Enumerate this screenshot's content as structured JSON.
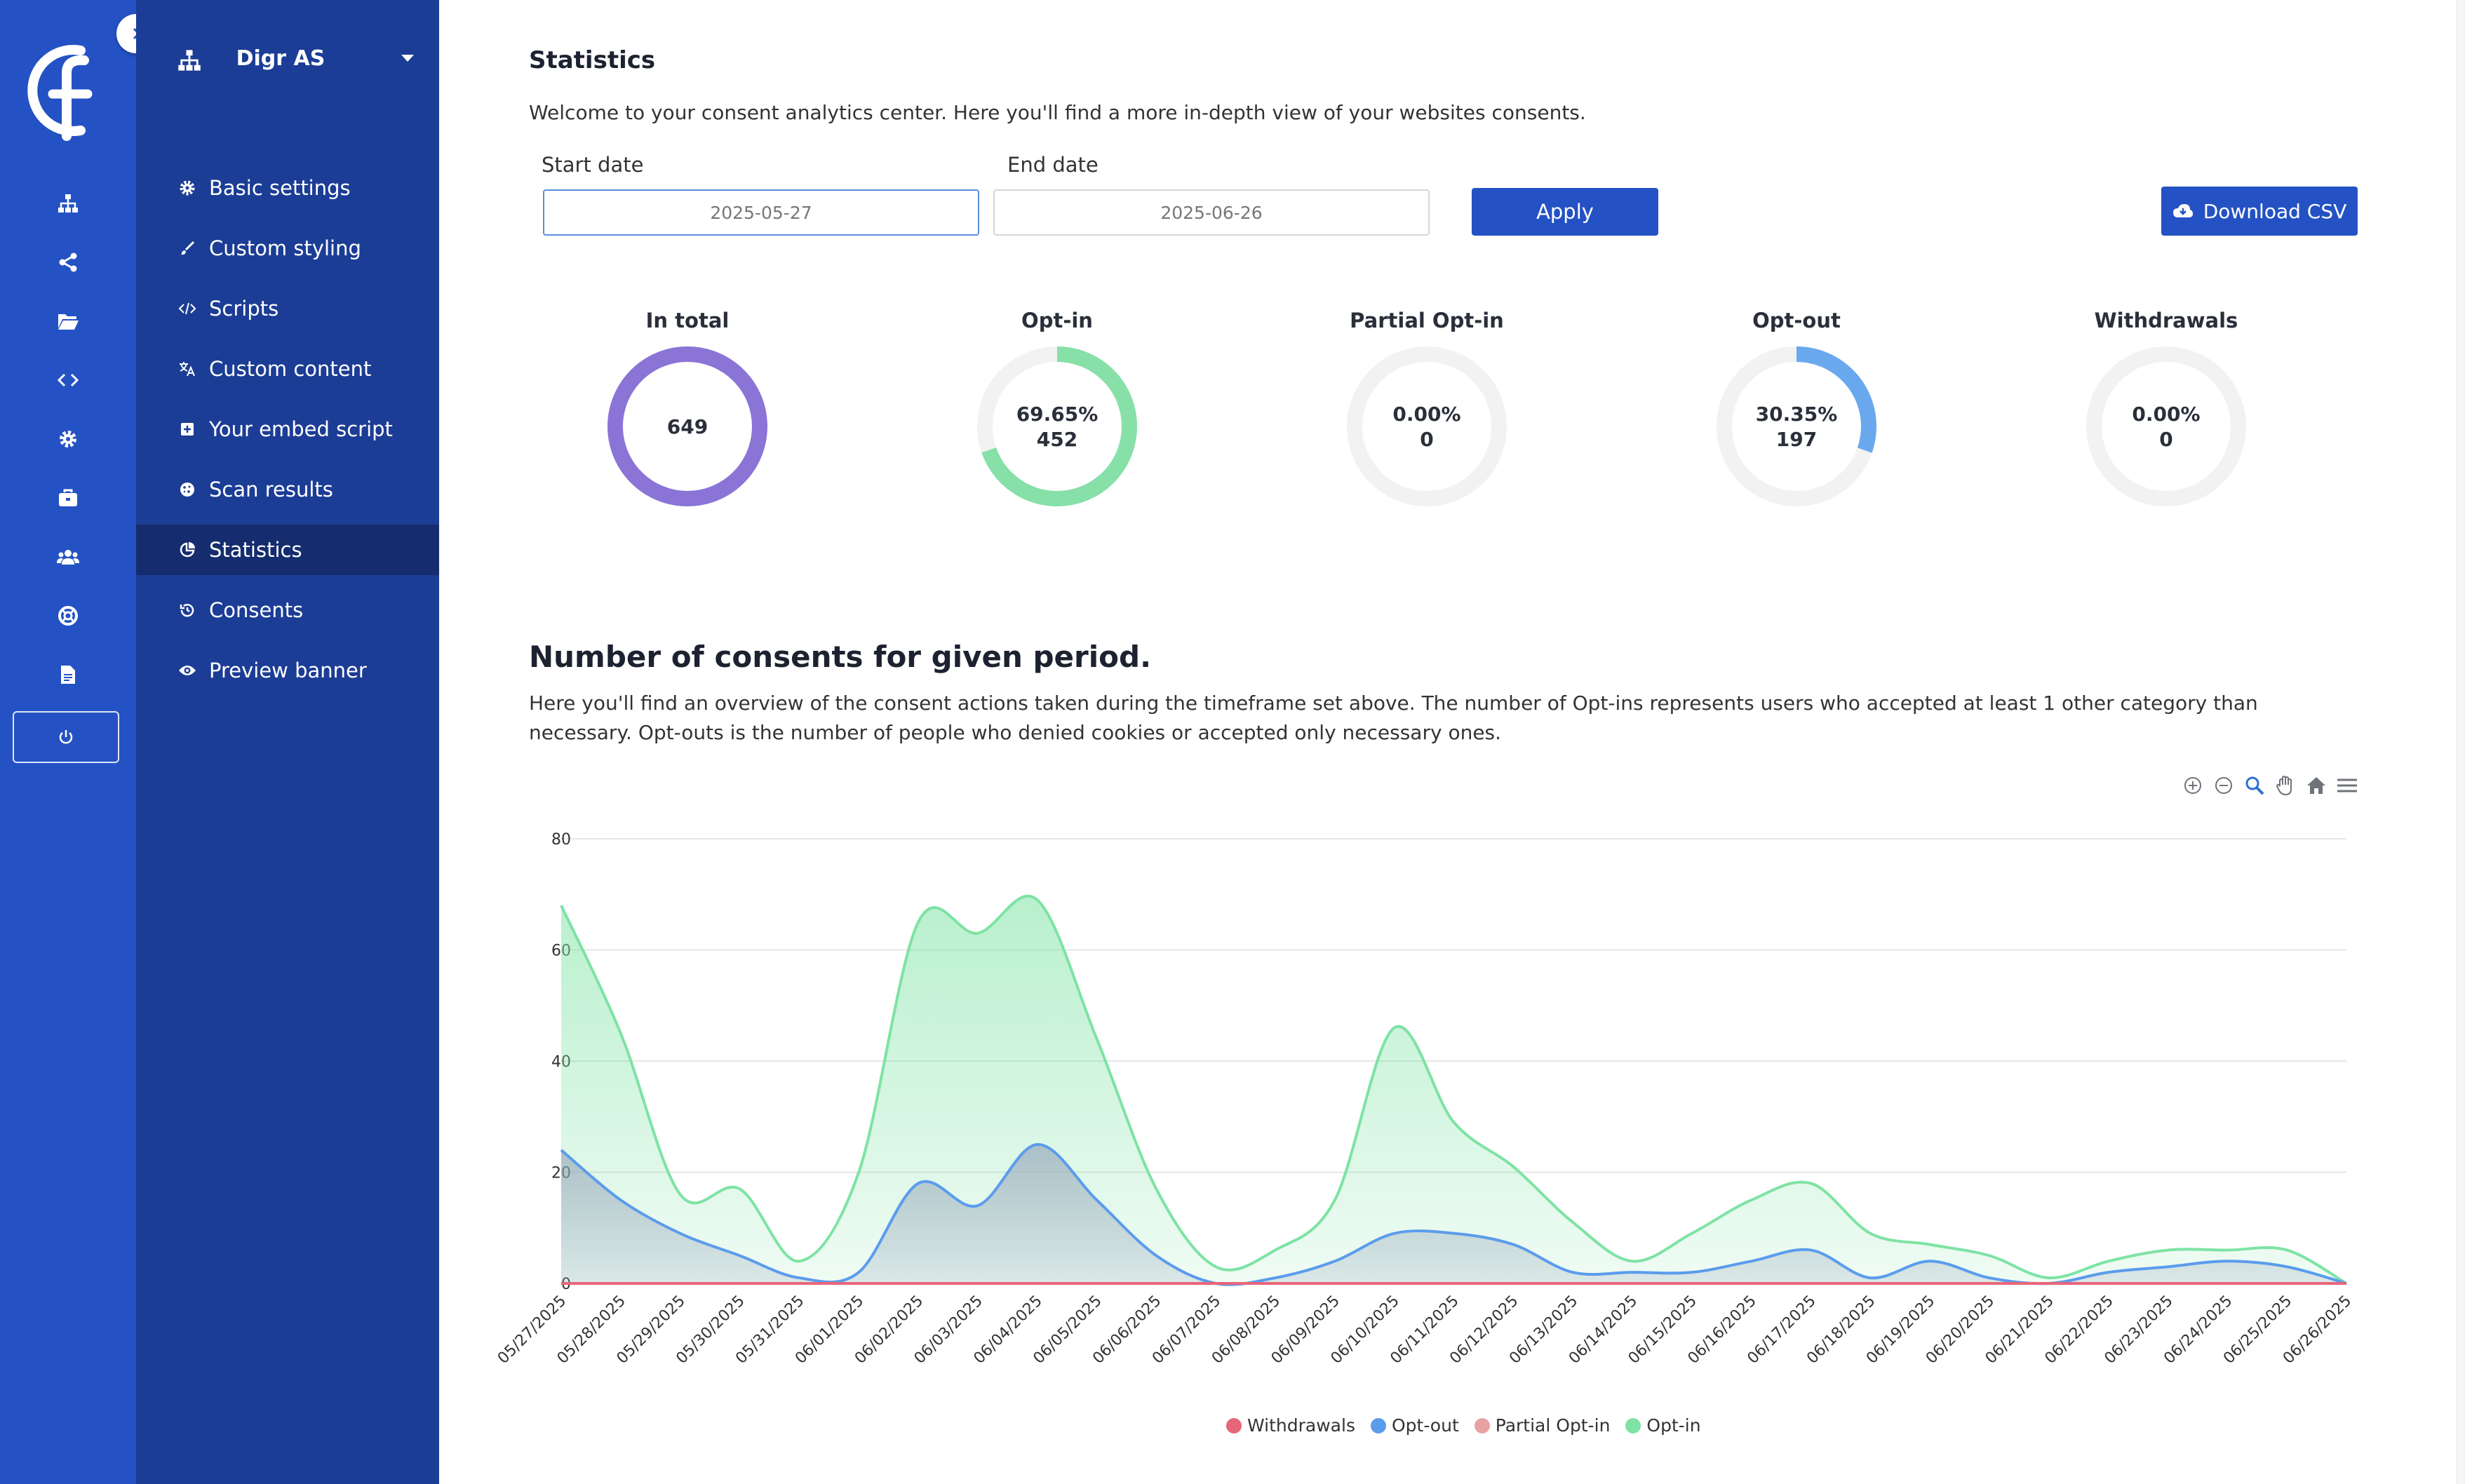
{
  "rail": {
    "icons": [
      "sitemap-icon",
      "share-icon",
      "folder-icon",
      "code-icon",
      "settings-icon",
      "briefcase-icon",
      "users-icon",
      "help-icon",
      "file-icon",
      "power-icon"
    ]
  },
  "sidebar": {
    "org_name": "Digr AS",
    "items": [
      {
        "label": "Basic settings",
        "icon": "gear-icon"
      },
      {
        "label": "Custom styling",
        "icon": "brush-icon"
      },
      {
        "label": "Scripts",
        "icon": "code-icon"
      },
      {
        "label": "Custom content",
        "icon": "translate-icon"
      },
      {
        "label": "Your embed script",
        "icon": "plus-square-icon"
      },
      {
        "label": "Scan results",
        "icon": "cookie-icon"
      },
      {
        "label": "Statistics",
        "icon": "pie-chart-icon",
        "active": true
      },
      {
        "label": "Consents",
        "icon": "history-icon"
      },
      {
        "label": "Preview banner",
        "icon": "eye-icon"
      }
    ]
  },
  "main": {
    "title": "Statistics",
    "intro": "Welcome to your consent analytics center. Here you'll find a more in-depth view of your websites consents.",
    "start_label": "Start date",
    "start_value": "2025-05-27",
    "end_label": "End date",
    "end_value": "2025-06-26",
    "apply_label": "Apply",
    "download_label": "Download CSV",
    "stats": [
      {
        "label": "In total",
        "line1": "649",
        "line2": "",
        "percent": 100,
        "color": "#8a74d6"
      },
      {
        "label": "Opt-in",
        "line1": "69.65%",
        "line2": "452",
        "percent": 69.65,
        "color": "#86e0a8"
      },
      {
        "label": "Partial Opt-in",
        "line1": "0.00%",
        "line2": "0",
        "percent": 0,
        "color": "#e8a2a2"
      },
      {
        "label": "Opt-out",
        "line1": "30.35%",
        "line2": "197",
        "percent": 30.35,
        "color": "#6aa8ee"
      },
      {
        "label": "Withdrawals",
        "line1": "0.00%",
        "line2": "0",
        "percent": 0,
        "color": "#e8667a"
      }
    ],
    "section_title": "Number of consents for given period.",
    "section_desc": "Here you'll find an overview of the consent actions taken during the timeframe set above. The number of Opt-ins represents users who accepted at least 1 other category than necessary. Opt-outs is the number of people who denied cookies or accepted only necessary ones.",
    "toolbar": [
      "zoom-in-icon",
      "zoom-out-icon",
      "zoom-select-icon",
      "pan-icon",
      "home-icon",
      "menu-icon"
    ]
  },
  "chart_data": {
    "type": "area",
    "x": [
      "05/27/2025",
      "05/28/2025",
      "05/29/2025",
      "05/30/2025",
      "05/31/2025",
      "06/01/2025",
      "06/02/2025",
      "06/03/2025",
      "06/04/2025",
      "06/05/2025",
      "06/06/2025",
      "06/07/2025",
      "06/08/2025",
      "06/09/2025",
      "06/10/2025",
      "06/11/2025",
      "06/12/2025",
      "06/13/2025",
      "06/14/2025",
      "06/15/2025",
      "06/16/2025",
      "06/17/2025",
      "06/18/2025",
      "06/19/2025",
      "06/20/2025",
      "06/21/2025",
      "06/22/2025",
      "06/23/2025",
      "06/24/2025",
      "06/25/2025",
      "06/26/2025"
    ],
    "ylim": [
      0,
      80
    ],
    "yticks": [
      0,
      20,
      40,
      60,
      80
    ],
    "series": [
      {
        "name": "Withdrawals",
        "color": "#e8667a",
        "values": [
          0,
          0,
          0,
          0,
          0,
          0,
          0,
          0,
          0,
          0,
          0,
          0,
          0,
          0,
          0,
          0,
          0,
          0,
          0,
          0,
          0,
          0,
          0,
          0,
          0,
          0,
          0,
          0,
          0,
          0,
          0
        ]
      },
      {
        "name": "Opt-out",
        "color": "#5b9cec",
        "values": [
          24,
          15,
          9,
          5,
          1,
          2,
          18,
          14,
          25,
          15,
          5,
          0,
          1,
          4,
          9,
          9,
          7,
          2,
          2,
          2,
          4,
          6,
          1,
          4,
          1,
          0,
          2,
          3,
          4,
          3,
          0
        ]
      },
      {
        "name": "Partial Opt-in",
        "color": "#e8a2a2",
        "values": [
          0,
          0,
          0,
          0,
          0,
          0,
          0,
          0,
          0,
          0,
          0,
          0,
          0,
          0,
          0,
          0,
          0,
          0,
          0,
          0,
          0,
          0,
          0,
          0,
          0,
          0,
          0,
          0,
          0,
          0,
          0
        ]
      },
      {
        "name": "Opt-in",
        "color": "#7ee3a4",
        "values": [
          68,
          45,
          16,
          17,
          4,
          20,
          65,
          63,
          69,
          44,
          17,
          3,
          6,
          15,
          46,
          29,
          21,
          11,
          4,
          9,
          15,
          18,
          9,
          7,
          5,
          1,
          4,
          6,
          6,
          6,
          0
        ]
      }
    ]
  }
}
